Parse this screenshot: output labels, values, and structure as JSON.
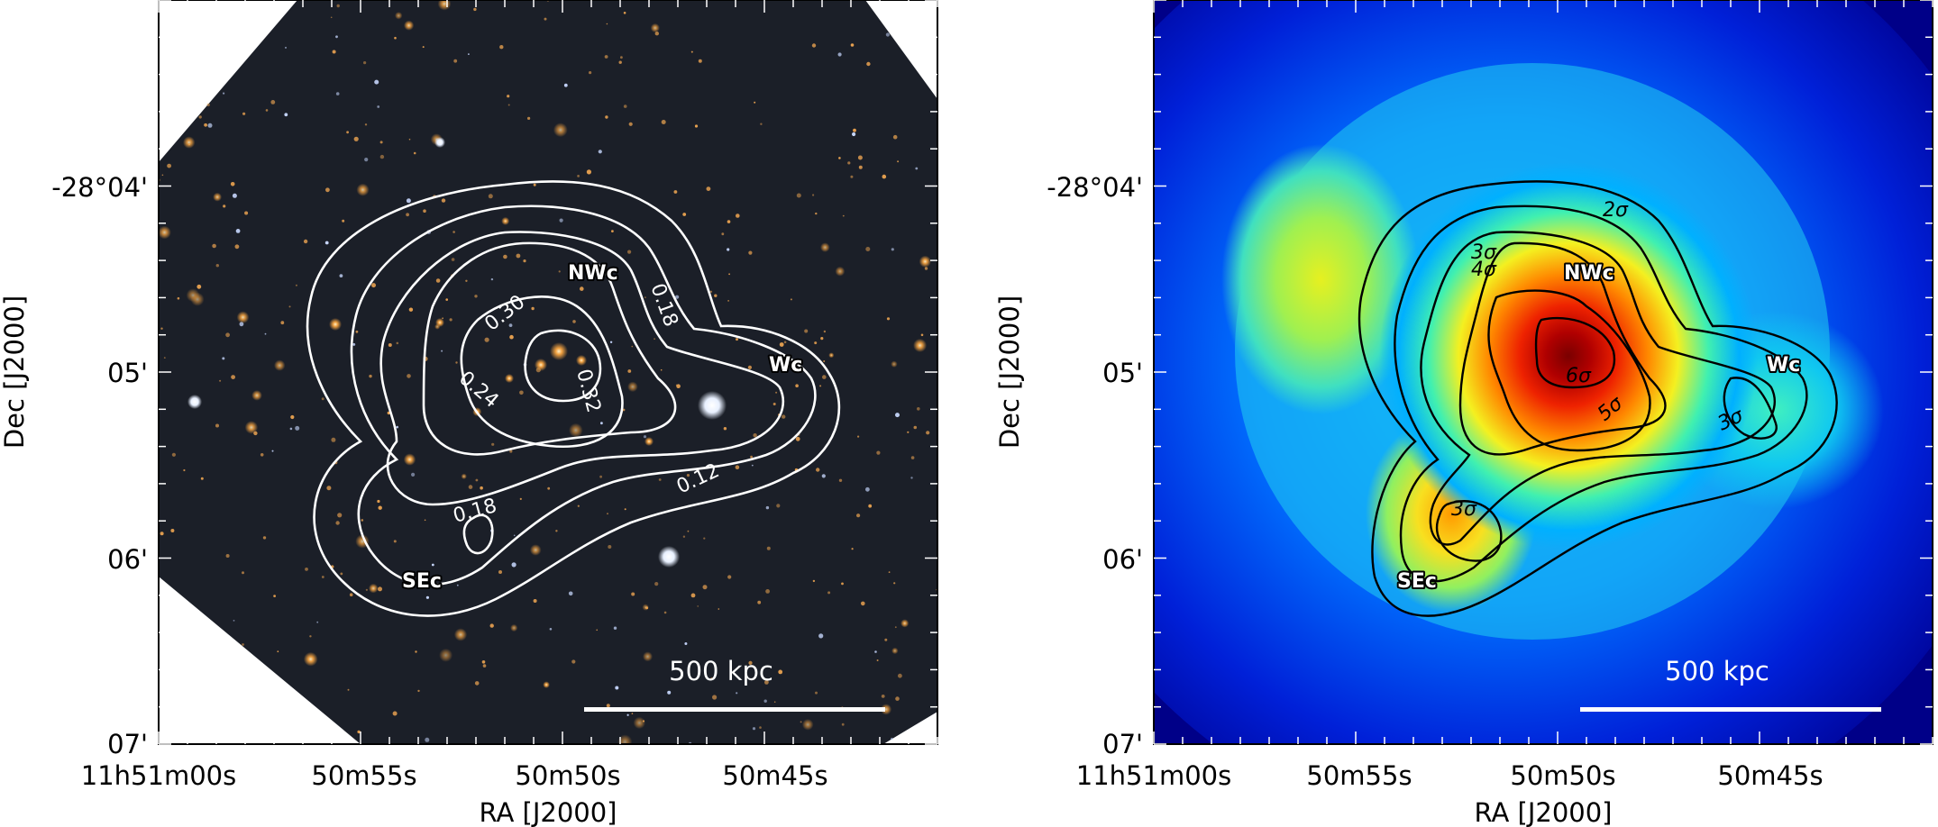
{
  "chart_data": [
    {
      "type": "heatmap",
      "panel": "optical image with contours",
      "xlabel": "RA [J2000]",
      "ylabel": "Dec [J2000]",
      "x_ticks": [
        "11h51m00s",
        "50m55s",
        "50m50s",
        "50m45s"
      ],
      "y_ticks": [
        "-28°04'",
        "05'",
        "06'",
        "07'"
      ],
      "contour_levels": [
        0.12,
        0.18,
        0.24,
        0.3,
        0.32
      ],
      "contour_labels": [
        "0.18",
        "0.30",
        "0.24",
        "0.32",
        "0.12",
        "0.18"
      ],
      "regions": [
        "NWc",
        "Wc",
        "SEc"
      ],
      "scale_bar": "500 kpc",
      "colors": {
        "background": "#1a1e27",
        "contour": "#ffffff"
      }
    },
    {
      "type": "heatmap",
      "panel": "significance map with contours",
      "xlabel": "RA [J2000]",
      "ylabel": "Dec [J2000]",
      "x_ticks": [
        "11h51m00s",
        "50m55s",
        "50m50s",
        "50m45s"
      ],
      "y_ticks": [
        "-28°04'",
        "05'",
        "06'",
        "07'"
      ],
      "contour_levels": [
        "2σ",
        "3σ",
        "4σ",
        "5σ",
        "6σ"
      ],
      "contour_labels": [
        "2σ",
        "3σ",
        "4σ",
        "6σ",
        "5σ",
        "3σ",
        "3σ"
      ],
      "regions": [
        "NWc",
        "Wc",
        "SEc"
      ],
      "scale_bar": "500 kpc",
      "colormap": "jet",
      "colors": {
        "contour": "#000000"
      }
    }
  ]
}
